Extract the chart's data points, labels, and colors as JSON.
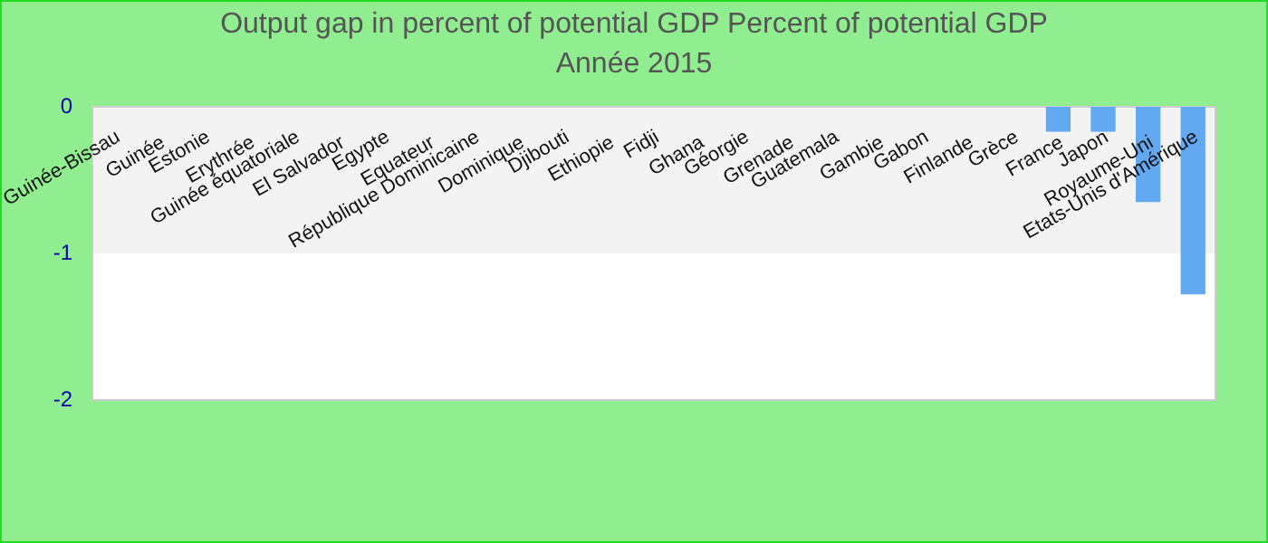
{
  "chart_data": {
    "type": "bar",
    "title": "Output gap in percent of potential GDP  Percent of potential GDP",
    "subtitle": "Année 2015",
    "categories": [
      "Guinée-Bissau",
      "Guinée",
      "Estonie",
      "Erythrée",
      "Guinée équatoriale",
      "El Salvador",
      "Egypte",
      "Equateur",
      "République Dominicaine",
      "Dominique",
      "Djibouti",
      "Ethiopie",
      "Fidji",
      "Ghana",
      "Géorgie",
      "Grenade",
      "Guatemala",
      "Gambie",
      "Gabon",
      "Finlande",
      "Grèce",
      "France",
      "Japon",
      "Royaume-Uni",
      "Etats-Unis d'Amérique"
    ],
    "values": [
      null,
      null,
      null,
      null,
      null,
      null,
      null,
      null,
      null,
      null,
      null,
      null,
      null,
      null,
      null,
      null,
      null,
      null,
      null,
      null,
      null,
      -0.17,
      -0.17,
      -0.65,
      -1.28
    ],
    "color": "#63a9f2",
    "ylim": [
      -2,
      0
    ],
    "yticks": [
      -2,
      -1,
      0
    ]
  }
}
